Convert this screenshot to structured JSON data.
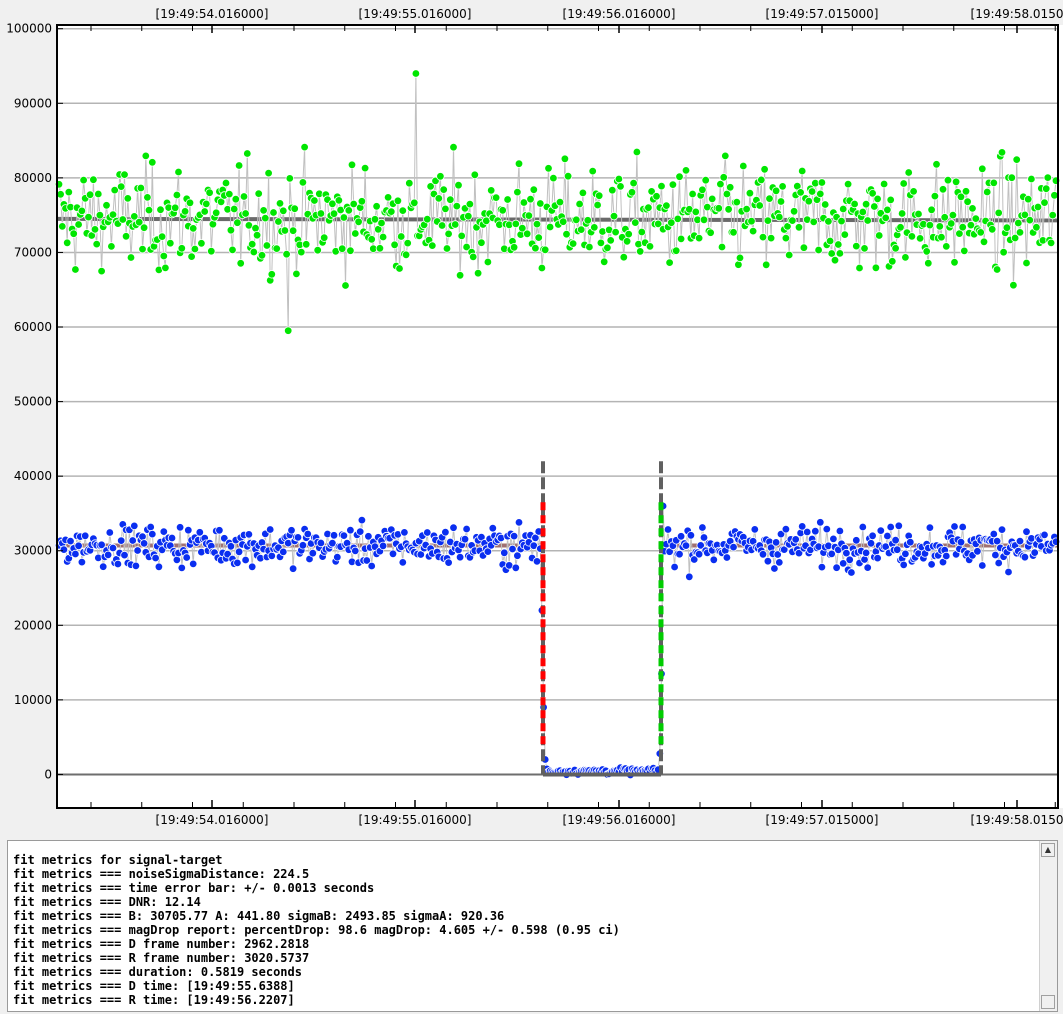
{
  "chart_data": {
    "type": "scatter",
    "title": "",
    "xlabel": "",
    "ylabel": "",
    "x_ticks": [
      "[19:49:54.016000]",
      "[19:49:55.016000]",
      "[19:49:56.016000]",
      "[19:49:57.015000]",
      "[19:49:58.0150"
    ],
    "y_ticks": [
      "0",
      "10000",
      "20000",
      "30000",
      "40000",
      "50000",
      "60000",
      "70000",
      "80000",
      "90000",
      "100000"
    ],
    "ylim": [
      -4500,
      100500
    ],
    "grid": true,
    "series": [
      {
        "color": "#00e600",
        "baseline_start": 74500,
        "baseline_end": 74300,
        "mean": 74500,
        "spread": 5800,
        "min": 59500,
        "max": 94000
      },
      {
        "color": "#0000ff",
        "baseline": 30706,
        "mean": 30700,
        "spread": 2500,
        "min": 23500,
        "max": 37500,
        "event_level": 442
      }
    ],
    "event": {
      "d_time": "19:49:55.6388",
      "r_time": "19:49:56.2207",
      "d_edge_color": "#ff0000",
      "r_edge_color": "#00cc00",
      "marker_color": "#606060",
      "marker_top": 42000,
      "marker_bottom": 0
    },
    "colors": {
      "baseline_blue": "#a07070",
      "baseline_green": "#6a6a6a",
      "grid": "#b4b4b4",
      "zero_line": "#6e6e6e"
    }
  },
  "log": {
    "lines": [
      "fit metrics for signal-target",
      "fit metrics === noiseSigmaDistance: 224.5",
      "fit metrics === time error bar: +/- 0.0013 seconds",
      "fit metrics === DNR: 12.14",
      "fit metrics === B: 30705.77 A: 441.80 sigmaB: 2493.85 sigmaA: 920.36",
      "fit metrics === magDrop report: percentDrop: 98.6 magDrop: 4.605 +/- 0.598 (0.95 ci)",
      "fit metrics === D frame number: 2962.2818",
      "fit metrics === R frame number: 3020.5737",
      "fit metrics === duration: 0.5819 seconds",
      "fit metrics === D time: [19:49:55.6388]",
      "fit metrics === R time: [19:49:56.2207]"
    ]
  }
}
